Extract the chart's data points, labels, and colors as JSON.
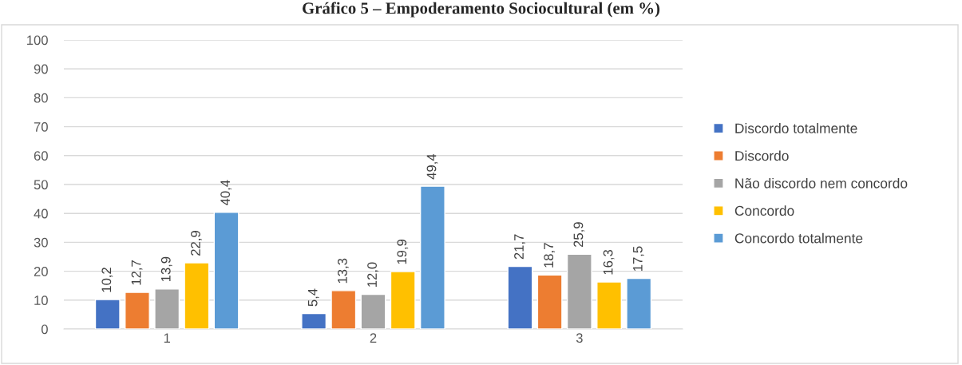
{
  "chart_data": {
    "type": "bar",
    "title": "Gráfico 5 – Empoderamento Sociocultural (em %)",
    "categories": [
      "1",
      "2",
      "3"
    ],
    "series": [
      {
        "name": "Discordo totalmente",
        "color": "#4472c4",
        "values": [
          10.2,
          5.4,
          21.7
        ],
        "value_labels": [
          "10,2",
          "5,4",
          "21,7"
        ]
      },
      {
        "name": "Discordo",
        "color": "#ed7d31",
        "values": [
          12.7,
          13.3,
          18.7
        ],
        "value_labels": [
          "12,7",
          "13,3",
          "18,7"
        ]
      },
      {
        "name": "Não discordo nem concordo",
        "color": "#a5a5a5",
        "values": [
          13.9,
          12.0,
          25.9
        ],
        "value_labels": [
          "13,9",
          "12,0",
          "25,9"
        ]
      },
      {
        "name": "Concordo",
        "color": "#ffc000",
        "values": [
          22.9,
          19.9,
          16.3
        ],
        "value_labels": [
          "22,9",
          "19,9",
          "16,3"
        ]
      },
      {
        "name": "Concordo totalmente",
        "color": "#5b9bd5",
        "values": [
          40.4,
          49.4,
          17.5
        ],
        "value_labels": [
          "40,4",
          "49,4",
          "17,5"
        ]
      }
    ],
    "ylim": [
      0,
      100
    ],
    "yticks": [
      0,
      10,
      20,
      30,
      40,
      50,
      60,
      70,
      80,
      90,
      100
    ],
    "grid": "y",
    "legend": "right"
  }
}
